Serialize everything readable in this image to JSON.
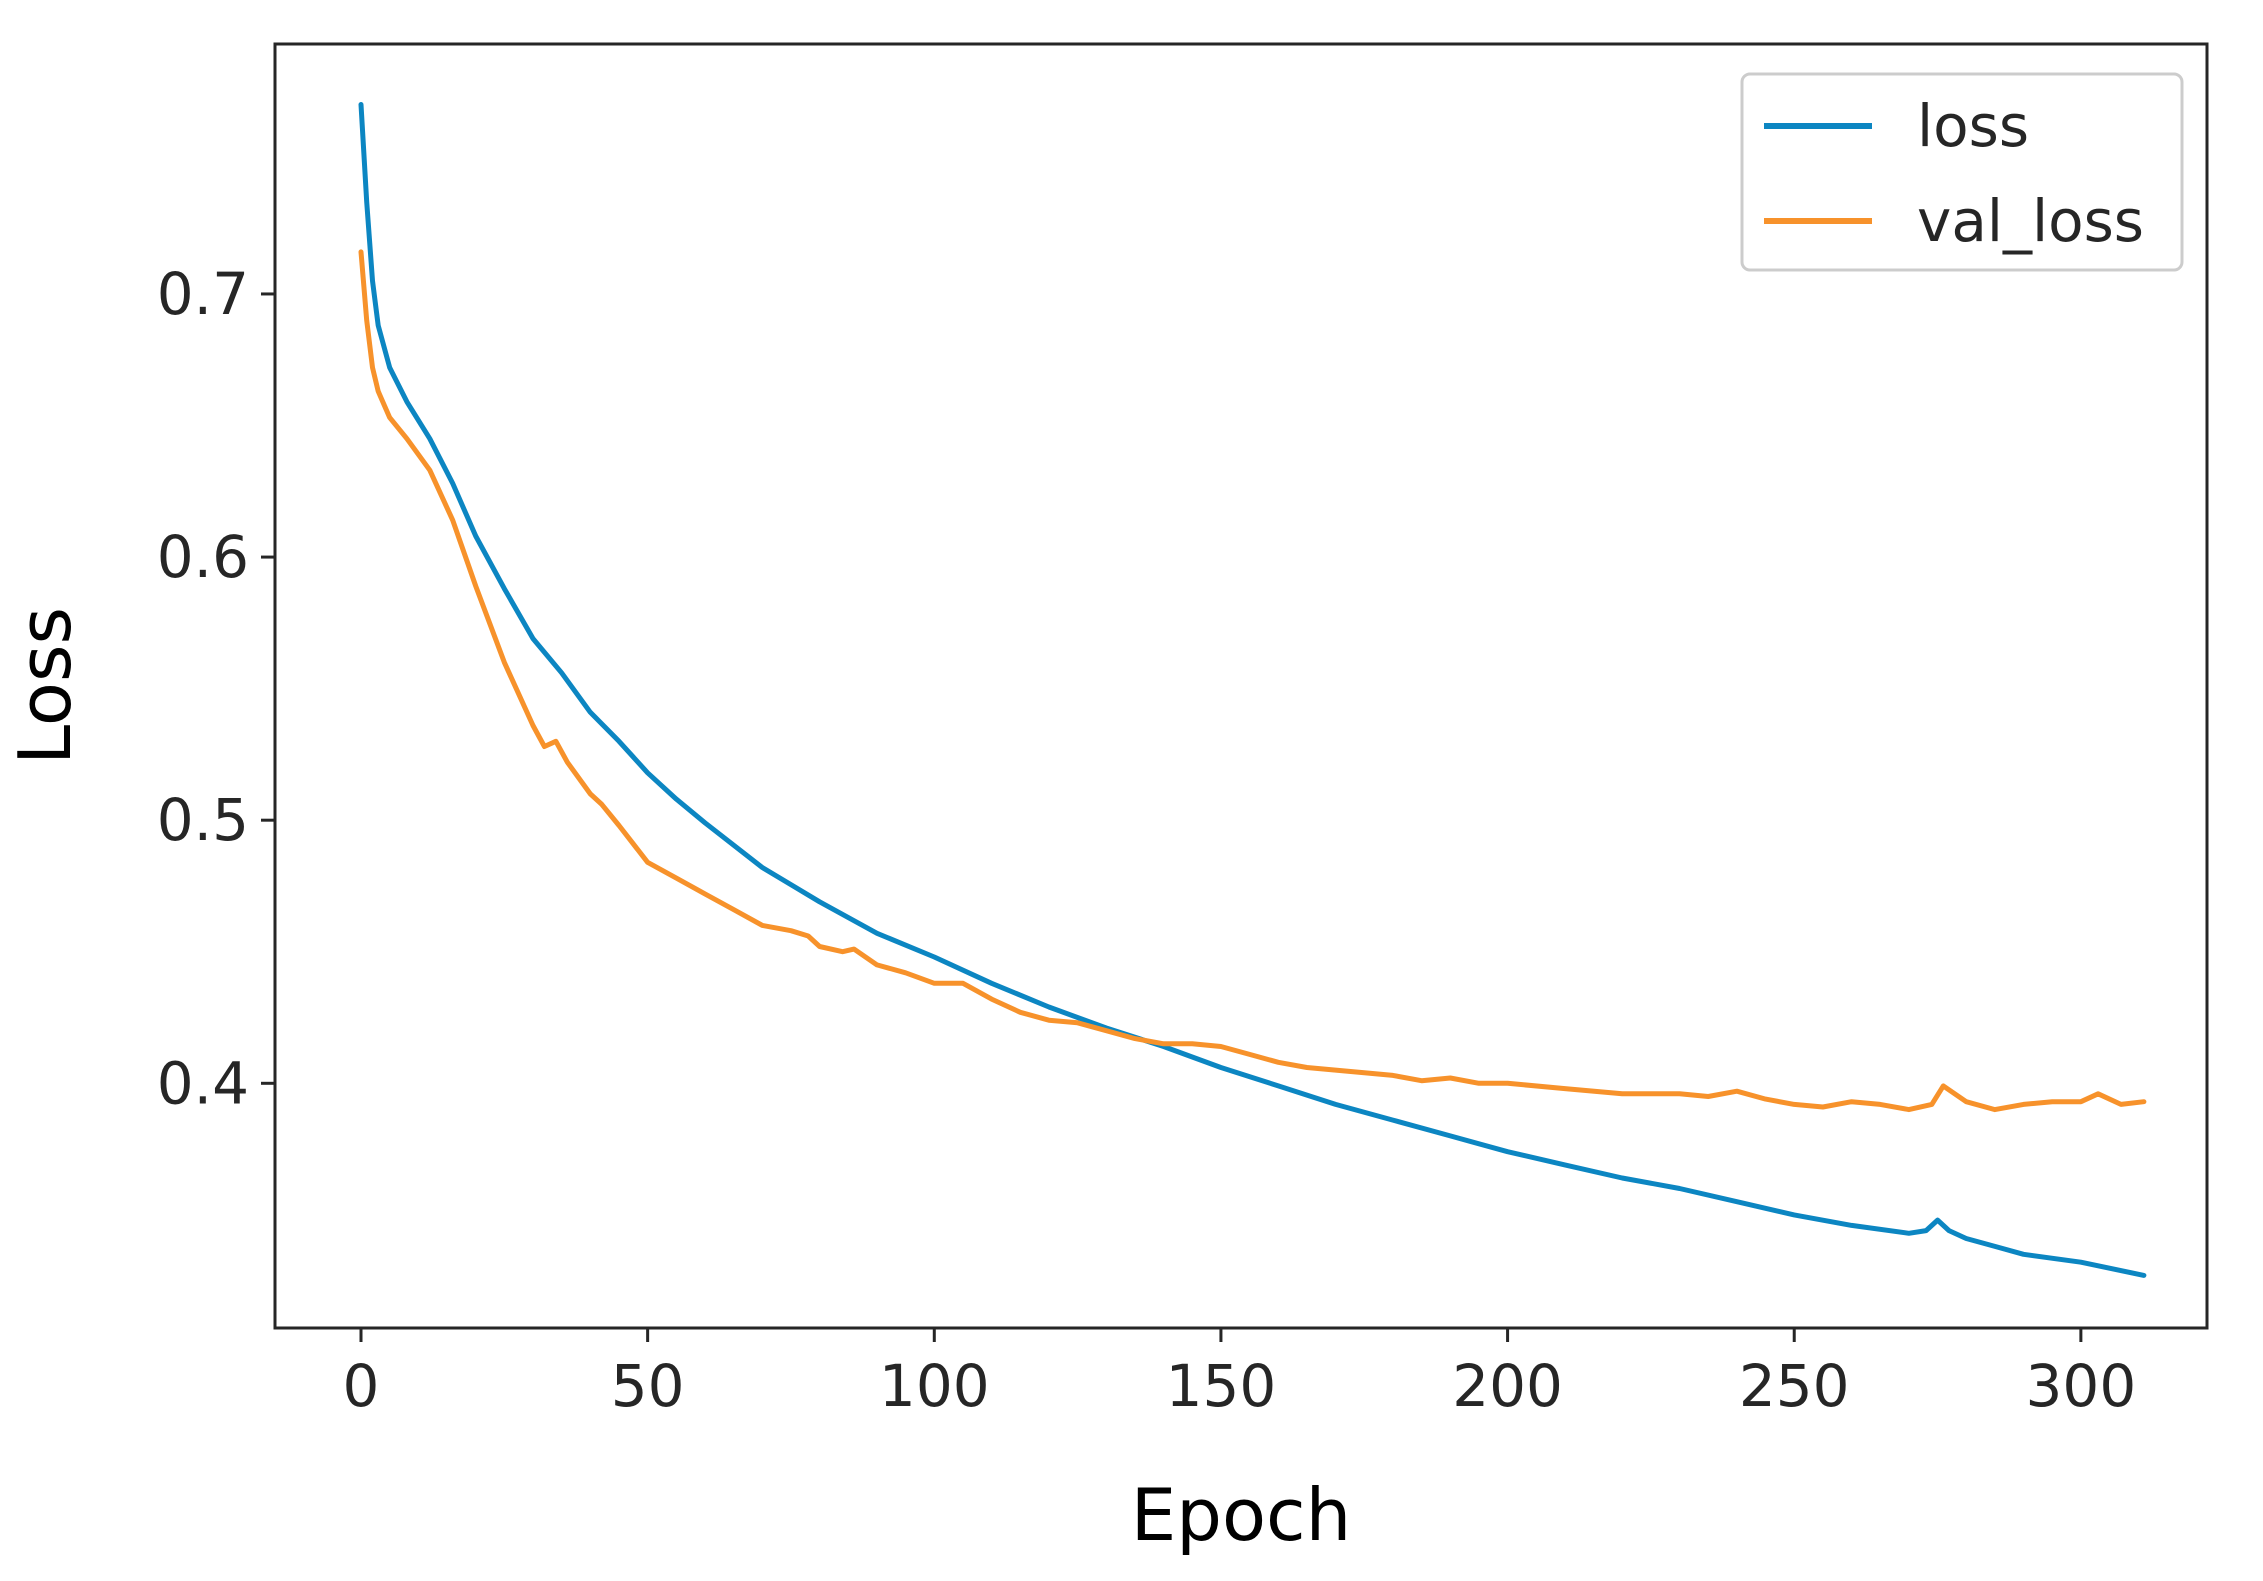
{
  "chart_data": {
    "type": "line",
    "title": "",
    "xlabel": "Epoch",
    "ylabel": "Loss",
    "xlim": [
      -15,
      322
    ],
    "ylim": [
      0.307,
      0.795
    ],
    "x_ticks": [
      0,
      50,
      100,
      150,
      200,
      250,
      300
    ],
    "x_tick_labels": [
      "0",
      "50",
      "100",
      "150",
      "200",
      "250",
      "300"
    ],
    "y_ticks": [
      0.4,
      0.5,
      0.6,
      0.7
    ],
    "y_tick_labels": [
      "0.4",
      "0.5",
      "0.6",
      "0.7"
    ],
    "grid": false,
    "legend_position": "upper right",
    "series": [
      {
        "name": "loss",
        "color": "#0c86c2",
        "x": [
          0,
          1,
          2,
          3,
          5,
          8,
          12,
          16,
          20,
          25,
          30,
          35,
          40,
          45,
          50,
          55,
          60,
          70,
          80,
          90,
          100,
          110,
          120,
          130,
          140,
          150,
          160,
          170,
          180,
          190,
          200,
          210,
          220,
          230,
          240,
          250,
          260,
          270,
          273,
          275,
          277,
          280,
          285,
          290,
          300,
          311
        ],
        "y": [
          0.772,
          0.735,
          0.705,
          0.688,
          0.672,
          0.659,
          0.645,
          0.628,
          0.608,
          0.588,
          0.569,
          0.556,
          0.541,
          0.53,
          0.518,
          0.508,
          0.499,
          0.482,
          0.469,
          0.457,
          0.448,
          0.438,
          0.429,
          0.421,
          0.414,
          0.406,
          0.399,
          0.392,
          0.386,
          0.38,
          0.374,
          0.369,
          0.364,
          0.36,
          0.355,
          0.35,
          0.346,
          0.343,
          0.344,
          0.348,
          0.344,
          0.341,
          0.338,
          0.335,
          0.332,
          0.327
        ]
      },
      {
        "name": "val_loss",
        "color": "#f7922b",
        "x": [
          0,
          1,
          2,
          3,
          5,
          8,
          12,
          16,
          20,
          25,
          30,
          32,
          34,
          36,
          40,
          42,
          45,
          50,
          55,
          60,
          65,
          70,
          75,
          78,
          80,
          84,
          86,
          90,
          95,
          100,
          105,
          110,
          115,
          120,
          125,
          130,
          135,
          140,
          145,
          150,
          155,
          160,
          165,
          170,
          175,
          180,
          185,
          190,
          195,
          200,
          210,
          220,
          230,
          235,
          240,
          245,
          250,
          255,
          260,
          265,
          270,
          274,
          276,
          280,
          285,
          290,
          295,
          300,
          303,
          307,
          311
        ],
        "y": [
          0.716,
          0.69,
          0.672,
          0.663,
          0.653,
          0.645,
          0.633,
          0.614,
          0.589,
          0.56,
          0.536,
          0.528,
          0.53,
          0.522,
          0.51,
          0.506,
          0.498,
          0.484,
          0.478,
          0.472,
          0.466,
          0.46,
          0.458,
          0.456,
          0.452,
          0.45,
          0.451,
          0.445,
          0.442,
          0.438,
          0.438,
          0.432,
          0.427,
          0.424,
          0.423,
          0.42,
          0.417,
          0.415,
          0.415,
          0.414,
          0.411,
          0.408,
          0.406,
          0.405,
          0.404,
          0.403,
          0.401,
          0.402,
          0.4,
          0.4,
          0.398,
          0.396,
          0.396,
          0.395,
          0.397,
          0.394,
          0.392,
          0.391,
          0.393,
          0.392,
          0.39,
          0.392,
          0.399,
          0.393,
          0.39,
          0.392,
          0.393,
          0.393,
          0.396,
          0.392,
          0.393
        ]
      }
    ]
  }
}
